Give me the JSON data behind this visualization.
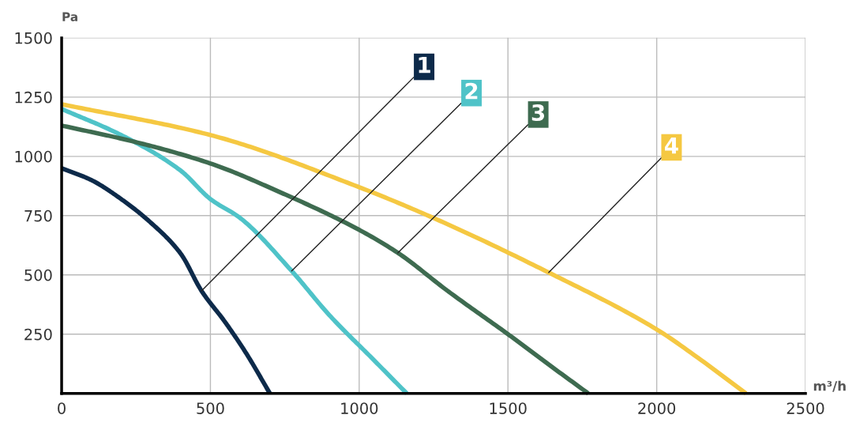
{
  "chart_data": {
    "type": "line",
    "xlabel": "m³/h",
    "ylabel": "Pa",
    "xlim": [
      0,
      2500
    ],
    "ylim": [
      0,
      1500
    ],
    "xticks": [
      0,
      500,
      1000,
      1500,
      2000,
      2500
    ],
    "yticks": [
      250,
      500,
      750,
      1000,
      1250,
      1500
    ],
    "grid": true,
    "legend": false,
    "marker": "none",
    "line_style": "solid",
    "series": [
      {
        "name": "1",
        "color": "#0d2a4a",
        "x": [
          0,
          100,
          200,
          300,
          400,
          470,
          550,
          620,
          700
        ],
        "values": [
          950,
          900,
          820,
          720,
          590,
          433,
          300,
          170,
          0
        ]
      },
      {
        "name": "2",
        "color": "#4fc3c8",
        "x": [
          0,
          200,
          400,
          500,
          600,
          773,
          900,
          1050,
          1160
        ],
        "values": [
          1200,
          1090,
          940,
          820,
          740,
          517,
          330,
          140,
          0
        ]
      },
      {
        "name": "3",
        "color": "#3e6b50",
        "x": [
          0,
          250,
          500,
          750,
          1000,
          1130,
          1300,
          1500,
          1650,
          1770
        ],
        "values": [
          1130,
          1060,
          970,
          840,
          690,
          593,
          430,
          250,
          110,
          0
        ]
      },
      {
        "name": "4",
        "color": "#f5c842",
        "x": [
          0,
          500,
          1000,
          1250,
          1637,
          2000,
          2150,
          2300
        ],
        "values": [
          1220,
          1090,
          870,
          740,
          510,
          270,
          140,
          0
        ]
      }
    ]
  }
}
